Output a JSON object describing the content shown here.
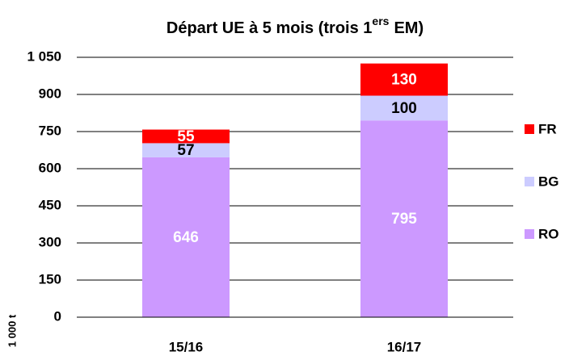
{
  "chart_data": {
    "type": "stacked_bar",
    "title": [
      "Départ UE à 5 mois (trois 1",
      "ers",
      "EM)"
    ],
    "y_label": "1 000 t",
    "categories": [
      "15/16",
      "16/17"
    ],
    "series": [
      {
        "name": "RO",
        "color": "#cc99ff",
        "label_color": "#ffffff",
        "values": [
          646,
          795
        ]
      },
      {
        "name": "BG",
        "color": "#ccccff",
        "label_color": "#000000",
        "values": [
          57,
          100
        ]
      },
      {
        "name": "FR",
        "color": "#ff0000",
        "label_color": "#ffffff",
        "values": [
          55,
          130
        ]
      }
    ],
    "ylim": [
      0,
      1050
    ],
    "yticks": [
      0,
      150,
      300,
      450,
      600,
      750,
      900,
      {
        "value": 1050,
        "label": "1 050"
      }
    ],
    "grid": true,
    "legend": "right"
  }
}
